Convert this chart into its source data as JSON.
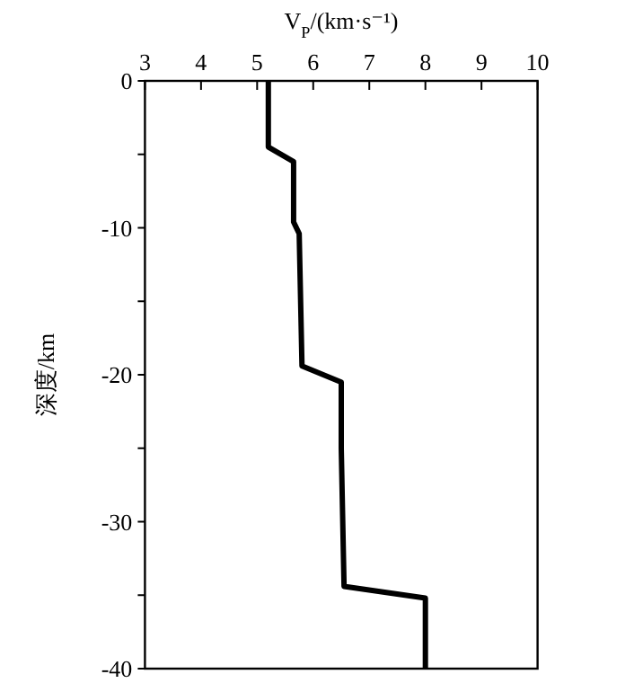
{
  "chart_data": {
    "type": "line",
    "xlabel": "V$_{P}$/(km·s⁻¹)",
    "ylabel": "深度/km",
    "xlim": [
      3,
      10
    ],
    "xticks": [
      3,
      4,
      5,
      6,
      7,
      8,
      9,
      10
    ],
    "ylim": [
      -40,
      0
    ],
    "yticks": [
      0,
      {
        "value": -5,
        "label": null
      },
      -10,
      {
        "value": -15,
        "label": null
      },
      -20,
      {
        "value": -25,
        "label": null
      },
      -30,
      {
        "value": -35,
        "label": null
      },
      -40
    ],
    "grid": false,
    "marker": "none",
    "line_style": "solid",
    "series": [
      {
        "color": "#000000",
        "x": [
          5.2,
          5.2,
          5.65,
          5.65,
          5.75,
          5.8,
          6.5,
          6.5,
          6.55,
          8.0,
          8.0
        ],
        "values": [
          0,
          -4.5,
          -5.5,
          -9.6,
          -10.4,
          -19.4,
          -20.5,
          -25,
          -34.4,
          -35.2,
          -40
        ]
      }
    ]
  }
}
